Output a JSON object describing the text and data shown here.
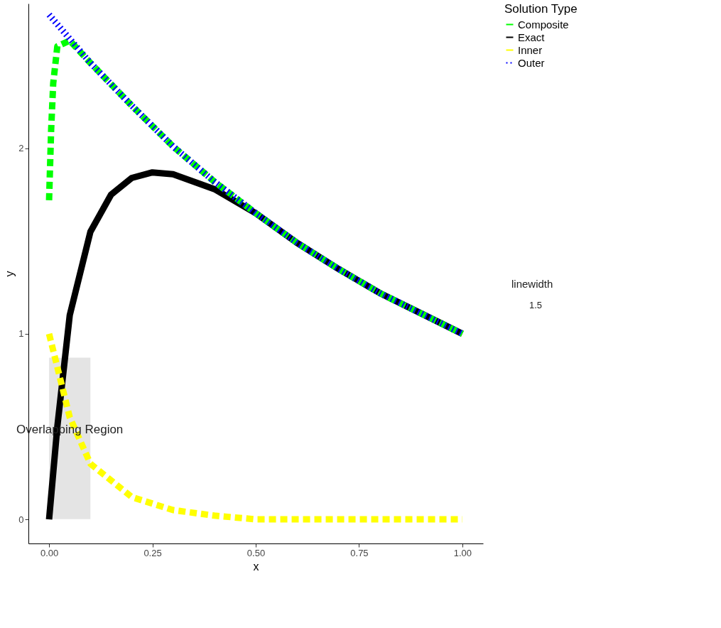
{
  "chart_data": {
    "type": "line",
    "xlabel": "x",
    "ylabel": "y",
    "legend_title": "Solution Type",
    "xlim": [
      -0.05,
      1.05
    ],
    "ylim": [
      -0.13,
      2.78
    ],
    "xticks": [
      {
        "value": 0,
        "label": "0.00"
      },
      {
        "value": 0.25,
        "label": "0.25"
      },
      {
        "value": 0.5,
        "label": "0.50"
      },
      {
        "value": 0.75,
        "label": "0.75"
      },
      {
        "value": 1,
        "label": "1.00"
      }
    ],
    "yticks": [
      0,
      1,
      2
    ],
    "grid": false,
    "legend": "right",
    "marker": "none",
    "series": [
      {
        "name": "Composite",
        "color": "#00ff00",
        "line_style": "dashed",
        "x": [
          0,
          0.005,
          0.01,
          0.02,
          0.05,
          0.1,
          0.2,
          0.3,
          0.4,
          0.5,
          0.6,
          0.7,
          0.8,
          0.9,
          1.0
        ],
        "values": [
          1.72,
          2.1,
          2.35,
          2.55,
          2.58,
          2.46,
          2.23,
          2.01,
          1.82,
          1.65,
          1.49,
          1.35,
          1.22,
          1.11,
          1.0
        ]
      },
      {
        "name": "Exact",
        "color": "#000000",
        "line_style": "solid",
        "x": [
          0,
          0.02,
          0.05,
          0.1,
          0.15,
          0.2,
          0.25,
          0.3,
          0.4,
          0.5,
          0.6,
          0.7,
          0.8,
          0.9,
          1.0
        ],
        "values": [
          0,
          0.5,
          1.1,
          1.55,
          1.75,
          1.84,
          1.87,
          1.86,
          1.78,
          1.65,
          1.49,
          1.35,
          1.22,
          1.11,
          1.0
        ]
      },
      {
        "name": "Inner",
        "color": "#ffff00",
        "line_style": "dashed",
        "x": [
          0,
          0.05,
          0.1,
          0.2,
          0.3,
          0.4,
          0.5,
          0.6,
          0.7,
          0.8,
          0.9,
          1.0
        ],
        "values": [
          1.0,
          0.55,
          0.3,
          0.12,
          0.05,
          0.02,
          0,
          0,
          0,
          0,
          0,
          0
        ]
      },
      {
        "name": "Outer",
        "color": "#0000ff",
        "line_style": "dotted",
        "x": [
          0,
          0.1,
          0.2,
          0.3,
          0.4,
          0.5,
          0.6,
          0.7,
          0.8,
          0.9,
          1.0
        ],
        "values": [
          2.72,
          2.46,
          2.23,
          2.01,
          1.82,
          1.65,
          1.49,
          1.35,
          1.22,
          1.11,
          1.0
        ]
      }
    ],
    "bands": [
      {
        "axis": "x",
        "from": 0,
        "to": 0.1,
        "label": "Overlapping Region",
        "color": "#d9d9d9"
      }
    ],
    "annotations": [
      "linewidth",
      "1.5"
    ]
  }
}
